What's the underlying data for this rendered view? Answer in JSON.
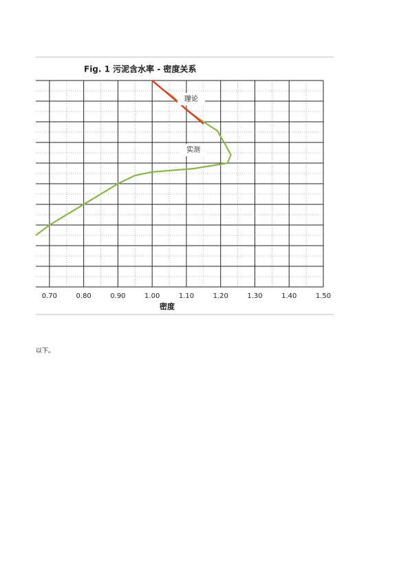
{
  "chart_data": {
    "type": "line",
    "title": "Fig. 1   污泥含水率 - 密度关系",
    "xlabel": "密度",
    "xlim": [
      0.66,
      1.5
    ],
    "ylim": [
      0,
      10
    ],
    "xticks": [
      {
        "value": 0.7,
        "label": "0.70"
      },
      {
        "value": 0.8,
        "label": "0.80"
      },
      {
        "value": 0.9,
        "label": "0.90"
      },
      {
        "value": 1.0,
        "label": "1.00"
      },
      {
        "value": 1.1,
        "label": "1.10"
      },
      {
        "value": 1.2,
        "label": "1.20"
      },
      {
        "value": 1.3,
        "label": "1.30"
      },
      {
        "value": 1.4,
        "label": "1.40"
      },
      {
        "value": 1.5,
        "label": "1.50"
      }
    ],
    "yticks": [
      0,
      1,
      2,
      3,
      4,
      5,
      6,
      7,
      8,
      9,
      10
    ],
    "grid": true,
    "series": [
      {
        "name": "实测",
        "color": "#8cb547",
        "x": [
          1.0,
          1.03,
          1.06,
          1.1,
          1.15,
          1.19,
          1.21,
          1.23,
          1.22,
          1.12,
          1.0,
          0.95,
          0.9,
          0.8,
          0.7,
          0.66
        ],
        "values": [
          10,
          9.57,
          9.23,
          8.57,
          8,
          7.57,
          7,
          6.4,
          6,
          5.73,
          5.57,
          5.4,
          5,
          4,
          3,
          2.5
        ]
      },
      {
        "name": "理论",
        "color": "#e8321e",
        "x": [
          1.0,
          1.15
        ],
        "values": [
          10,
          7.9
        ]
      }
    ]
  },
  "body_text": "以下。"
}
